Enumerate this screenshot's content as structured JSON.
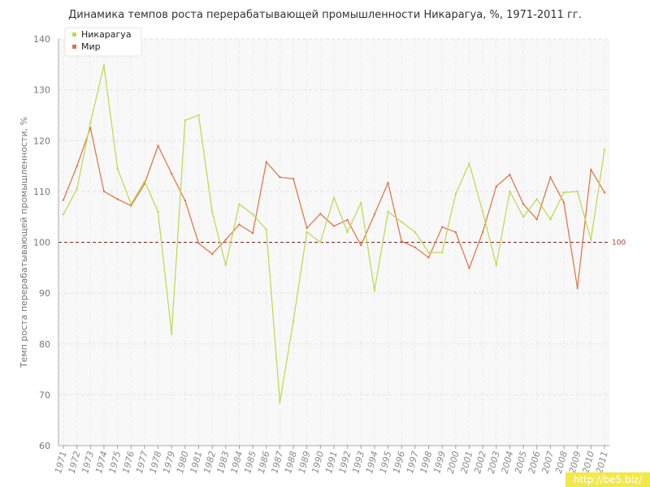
{
  "chart_data": {
    "type": "line",
    "title": "Динамика темпов роста перерабатывающей промышленности Никарагуа, %, 1971-2011 гг.",
    "xlabel": "",
    "ylabel": "Темп роста перерабатывающей промышленности, %",
    "ylim": [
      60,
      140
    ],
    "yticks": [
      60,
      70,
      80,
      90,
      100,
      110,
      120,
      130,
      140
    ],
    "grid": true,
    "legend_position": "top-left",
    "categories": [
      "1971",
      "1972",
      "1973",
      "1974",
      "1975",
      "1976",
      "1977",
      "1978",
      "1979",
      "1980",
      "1981",
      "1982",
      "1983",
      "1984",
      "1985",
      "1986",
      "1987",
      "1988",
      "1989",
      "1990",
      "1991",
      "1992",
      "1993",
      "1994",
      "1995",
      "1996",
      "1997",
      "1998",
      "1999",
      "2000",
      "2001",
      "2002",
      "2003",
      "2004",
      "2005",
      "2006",
      "2007",
      "2008",
      "2009",
      "2010",
      "2011"
    ],
    "series": [
      {
        "name": "Никарагуа",
        "color": "#bcd94a",
        "values": [
          105.5,
          110.5,
          123.5,
          134.8,
          114.5,
          107.5,
          112.0,
          106.0,
          82.0,
          124.0,
          125.0,
          106.0,
          95.5,
          107.5,
          105.5,
          102.5,
          68.5,
          84.5,
          102.0,
          100.0,
          108.8,
          102.0,
          107.8,
          90.5,
          106.0,
          104.0,
          102.0,
          98.0,
          98.0,
          109.5,
          115.5,
          106.0,
          95.5,
          110.0,
          105.0,
          108.5,
          104.5,
          109.8,
          110.0,
          100.5,
          118.2
        ]
      },
      {
        "name": "Мир",
        "color": "#e07040",
        "values": [
          108.3,
          115.0,
          122.5,
          110.0,
          108.5,
          107.2,
          111.5,
          119.0,
          113.5,
          108.2,
          99.8,
          97.7,
          100.5,
          103.5,
          101.8,
          115.8,
          112.8,
          112.5,
          102.8,
          105.6,
          103.2,
          104.4,
          99.4,
          105.5,
          111.7,
          100.2,
          99.0,
          97.0,
          103.0,
          102.0,
          94.9,
          102.0,
          111.0,
          113.3,
          107.5,
          104.5,
          112.8,
          107.8,
          91.0,
          114.3,
          109.8
        ]
      }
    ],
    "reference_line": {
      "value": 100,
      "label": "100",
      "color": "#8b2020"
    }
  },
  "watermark": "http://be5.biz/"
}
